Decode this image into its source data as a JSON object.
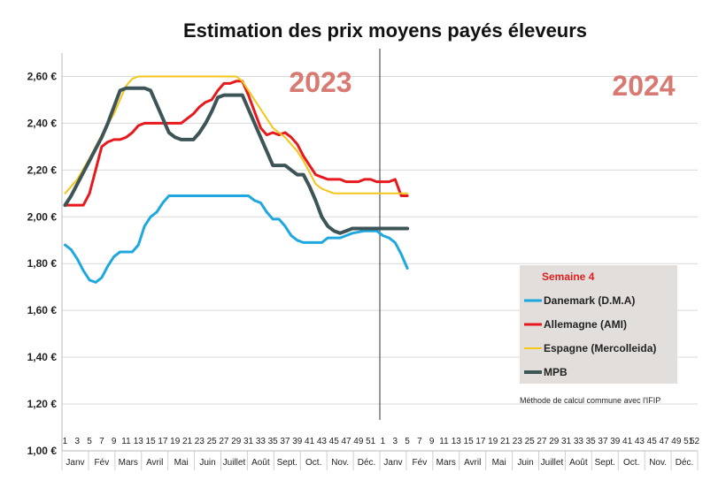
{
  "chart_data": {
    "type": "line",
    "title": "Estimation des prix moyens payés éleveurs",
    "ylim": [
      1.0,
      2.7
    ],
    "yticks": [
      1.0,
      1.2,
      1.4,
      1.6,
      1.8,
      2.0,
      2.2,
      2.4,
      2.6
    ],
    "ytick_labels": [
      "1,00 €",
      "1,20 €",
      "1,40 €",
      "1,60 €",
      "1,80 €",
      "2,00 €",
      "2,20 €",
      "2,40 €",
      "2,60 €"
    ],
    "grid": true,
    "year_labels": [
      {
        "text": "2023",
        "color": "#d87a72"
      },
      {
        "text": "2024",
        "color": "#d87a72"
      }
    ],
    "week_axis": {
      "weeks_per_year": 52,
      "years": 2,
      "labels_2023": [
        "1",
        "3",
        "5",
        "7",
        "9",
        "11",
        "13",
        "15",
        "17",
        "19",
        "21",
        "23",
        "25",
        "27",
        "29",
        "31",
        "33",
        "35",
        "37",
        "39",
        "41",
        "43",
        "45",
        "47",
        "49",
        "51"
      ],
      "labels_2024": [
        "1",
        "3",
        "5",
        "7",
        "9",
        "11",
        "13",
        "15",
        "17",
        "19",
        "21",
        "23",
        "25",
        "27",
        "29",
        "31",
        "33",
        "35",
        "37",
        "39",
        "41",
        "43",
        "45",
        "47",
        "49",
        "51"
      ],
      "last_label": "52"
    },
    "months": [
      "Janv",
      "Fév",
      "Mars",
      "Avril",
      "Mai",
      "Juin",
      "Juillet",
      "Août",
      "Sept.",
      "Oct.",
      "Nov.",
      "Déc.",
      "Janv",
      "Fév",
      "Mars",
      "Avril",
      "Mai",
      "Juin",
      "Juillet",
      "Août",
      "Sept.",
      "Oct.",
      "Nov.",
      "Déc."
    ],
    "divider_week": 52.5,
    "legend": {
      "title": "Semaine 4",
      "placement": "bottom-right",
      "background": "#e2dedb"
    },
    "note": "Méthode de calcul commune avec l'IFIP",
    "series": [
      {
        "name": "Danemark (D.M.A)",
        "color": "#1fa8e0",
        "width": 3,
        "points": [
          [
            1,
            1.88
          ],
          [
            2,
            1.86
          ],
          [
            3,
            1.82
          ],
          [
            4,
            1.77
          ],
          [
            5,
            1.73
          ],
          [
            6,
            1.72
          ],
          [
            7,
            1.74
          ],
          [
            8,
            1.79
          ],
          [
            9,
            1.83
          ],
          [
            10,
            1.85
          ],
          [
            11,
            1.85
          ],
          [
            12,
            1.85
          ],
          [
            13,
            1.88
          ],
          [
            14,
            1.96
          ],
          [
            15,
            2.0
          ],
          [
            16,
            2.02
          ],
          [
            17,
            2.06
          ],
          [
            18,
            2.09
          ],
          [
            20,
            2.09
          ],
          [
            22,
            2.09
          ],
          [
            24,
            2.09
          ],
          [
            26,
            2.09
          ],
          [
            28,
            2.09
          ],
          [
            30,
            2.09
          ],
          [
            31,
            2.09
          ],
          [
            32,
            2.07
          ],
          [
            33,
            2.06
          ],
          [
            34,
            2.02
          ],
          [
            35,
            1.99
          ],
          [
            36,
            1.99
          ],
          [
            37,
            1.96
          ],
          [
            38,
            1.92
          ],
          [
            39,
            1.9
          ],
          [
            40,
            1.89
          ],
          [
            42,
            1.89
          ],
          [
            43,
            1.89
          ],
          [
            44,
            1.91
          ],
          [
            46,
            1.91
          ],
          [
            47,
            1.92
          ],
          [
            48,
            1.93
          ],
          [
            50,
            1.94
          ],
          [
            52,
            1.94
          ],
          [
            53,
            1.92
          ],
          [
            54,
            1.91
          ],
          [
            55,
            1.89
          ],
          [
            56,
            1.84
          ],
          [
            57,
            1.78
          ]
        ]
      },
      {
        "name": "Allemagne (AMI)",
        "color": "#e8191d",
        "width": 3,
        "points": [
          [
            1,
            2.05
          ],
          [
            2,
            2.05
          ],
          [
            3,
            2.05
          ],
          [
            4,
            2.05
          ],
          [
            5,
            2.1
          ],
          [
            6,
            2.2
          ],
          [
            7,
            2.3
          ],
          [
            8,
            2.32
          ],
          [
            9,
            2.33
          ],
          [
            10,
            2.33
          ],
          [
            11,
            2.34
          ],
          [
            12,
            2.36
          ],
          [
            13,
            2.39
          ],
          [
            14,
            2.4
          ],
          [
            16,
            2.4
          ],
          [
            18,
            2.4
          ],
          [
            20,
            2.4
          ],
          [
            21,
            2.42
          ],
          [
            22,
            2.44
          ],
          [
            23,
            2.47
          ],
          [
            24,
            2.49
          ],
          [
            25,
            2.5
          ],
          [
            26,
            2.54
          ],
          [
            27,
            2.57
          ],
          [
            28,
            2.57
          ],
          [
            29,
            2.58
          ],
          [
            30,
            2.58
          ],
          [
            31,
            2.52
          ],
          [
            32,
            2.45
          ],
          [
            33,
            2.38
          ],
          [
            34,
            2.35
          ],
          [
            35,
            2.36
          ],
          [
            36,
            2.35
          ],
          [
            37,
            2.36
          ],
          [
            38,
            2.34
          ],
          [
            39,
            2.31
          ],
          [
            40,
            2.26
          ],
          [
            41,
            2.22
          ],
          [
            42,
            2.18
          ],
          [
            43,
            2.17
          ],
          [
            44,
            2.16
          ],
          [
            46,
            2.16
          ],
          [
            47,
            2.15
          ],
          [
            49,
            2.15
          ],
          [
            50,
            2.16
          ],
          [
            51,
            2.16
          ],
          [
            52,
            2.15
          ],
          [
            53,
            2.15
          ],
          [
            54,
            2.15
          ],
          [
            55,
            2.16
          ],
          [
            56,
            2.09
          ],
          [
            57,
            2.09
          ]
        ]
      },
      {
        "name": "Espagne (Mercolleida)",
        "color": "#f5c518",
        "width": 2,
        "points": [
          [
            1,
            2.1
          ],
          [
            3,
            2.16
          ],
          [
            5,
            2.25
          ],
          [
            7,
            2.35
          ],
          [
            9,
            2.44
          ],
          [
            10,
            2.5
          ],
          [
            11,
            2.56
          ],
          [
            12,
            2.59
          ],
          [
            13,
            2.6
          ],
          [
            15,
            2.6
          ],
          [
            20,
            2.6
          ],
          [
            25,
            2.6
          ],
          [
            28,
            2.6
          ],
          [
            29,
            2.6
          ],
          [
            30,
            2.58
          ],
          [
            31,
            2.54
          ],
          [
            32,
            2.5
          ],
          [
            33,
            2.46
          ],
          [
            34,
            2.42
          ],
          [
            35,
            2.38
          ],
          [
            36,
            2.36
          ],
          [
            37,
            2.34
          ],
          [
            38,
            2.31
          ],
          [
            39,
            2.28
          ],
          [
            40,
            2.24
          ],
          [
            41,
            2.19
          ],
          [
            42,
            2.14
          ],
          [
            43,
            2.12
          ],
          [
            44,
            2.11
          ],
          [
            45,
            2.1
          ],
          [
            50,
            2.1
          ],
          [
            55,
            2.1
          ],
          [
            57,
            2.1
          ]
        ]
      },
      {
        "name": "MPB",
        "color": "#3e5558",
        "width": 4,
        "points": [
          [
            1,
            2.05
          ],
          [
            2,
            2.09
          ],
          [
            3,
            2.14
          ],
          [
            4,
            2.19
          ],
          [
            5,
            2.24
          ],
          [
            6,
            2.29
          ],
          [
            7,
            2.34
          ],
          [
            8,
            2.4
          ],
          [
            9,
            2.47
          ],
          [
            10,
            2.54
          ],
          [
            11,
            2.55
          ],
          [
            12,
            2.55
          ],
          [
            13,
            2.55
          ],
          [
            14,
            2.55
          ],
          [
            15,
            2.54
          ],
          [
            16,
            2.48
          ],
          [
            17,
            2.42
          ],
          [
            18,
            2.36
          ],
          [
            19,
            2.34
          ],
          [
            20,
            2.33
          ],
          [
            21,
            2.33
          ],
          [
            22,
            2.33
          ],
          [
            23,
            2.36
          ],
          [
            24,
            2.4
          ],
          [
            25,
            2.45
          ],
          [
            26,
            2.51
          ],
          [
            27,
            2.52
          ],
          [
            28,
            2.52
          ],
          [
            29,
            2.52
          ],
          [
            30,
            2.52
          ],
          [
            31,
            2.46
          ],
          [
            32,
            2.4
          ],
          [
            33,
            2.34
          ],
          [
            34,
            2.28
          ],
          [
            35,
            2.22
          ],
          [
            36,
            2.22
          ],
          [
            37,
            2.22
          ],
          [
            38,
            2.2
          ],
          [
            39,
            2.18
          ],
          [
            40,
            2.18
          ],
          [
            41,
            2.13
          ],
          [
            42,
            2.07
          ],
          [
            43,
            2.0
          ],
          [
            44,
            1.96
          ],
          [
            45,
            1.94
          ],
          [
            46,
            1.93
          ],
          [
            47,
            1.94
          ],
          [
            48,
            1.95
          ],
          [
            50,
            1.95
          ],
          [
            52,
            1.95
          ],
          [
            54,
            1.95
          ],
          [
            56,
            1.95
          ],
          [
            57,
            1.95
          ]
        ]
      }
    ]
  }
}
